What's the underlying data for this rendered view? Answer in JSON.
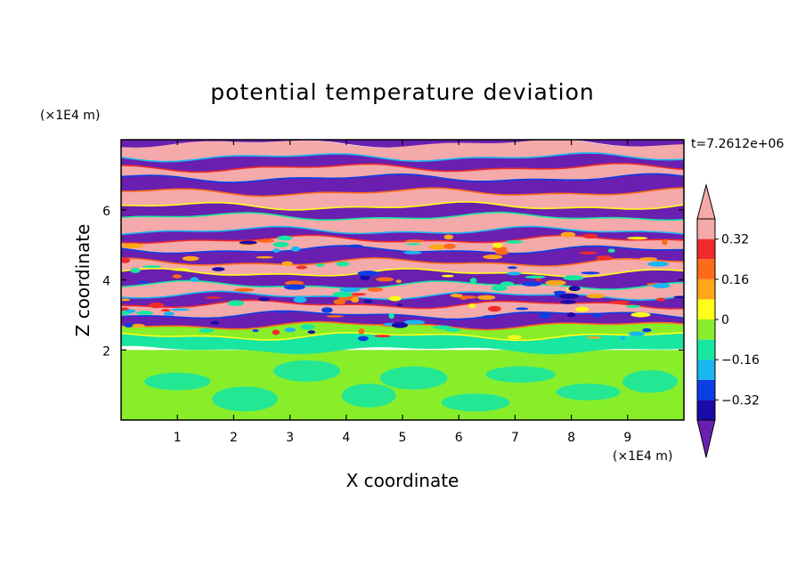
{
  "chart_data": {
    "type": "heatmap",
    "title": "potential temperature deviation",
    "xlabel": "X coordinate",
    "ylabel": "Z coordinate",
    "x_unit": "(×1E4 m)",
    "y_unit": "(×1E4 m)",
    "time_label": "t=7.2612e+06",
    "xlim": [
      0,
      10
    ],
    "ylim": [
      0,
      8
    ],
    "x_ticks": [
      "1",
      "2",
      "3",
      "4",
      "5",
      "6",
      "7",
      "8",
      "9"
    ],
    "y_ticks": [
      "2",
      "4",
      "6"
    ],
    "colorbar": {
      "levels": [
        -0.4,
        -0.32,
        -0.24,
        -0.16,
        -0.08,
        0,
        0.08,
        0.16,
        0.24,
        0.32,
        0.4
      ],
      "labels": [
        "0.32",
        "0.16",
        "0",
        "−0.16",
        "−0.32"
      ],
      "label_values": [
        0.32,
        0.16,
        0,
        -0.16,
        -0.32
      ],
      "colors": [
        "#6a1fb0",
        "#1a0aa8",
        "#0a3fe6",
        "#19b6f0",
        "#19e6a0",
        "#88ee2a",
        "#ffff19",
        "#ffa619",
        "#ff6a19",
        "#ee2c2c",
        "#f4aaaa"
      ],
      "extend": "both"
    },
    "bands": [
      {
        "z": [
          7.9,
          8.0
        ],
        "level": "low"
      },
      {
        "z": [
          7.5,
          7.9
        ],
        "level": "high"
      },
      {
        "z": [
          7.2,
          7.5
        ],
        "level": "low"
      },
      {
        "z": [
          6.9,
          7.2
        ],
        "level": "high"
      },
      {
        "z": [
          6.5,
          6.9
        ],
        "level": "low"
      },
      {
        "z": [
          6.1,
          6.5
        ],
        "level": "high"
      },
      {
        "z": [
          5.8,
          6.1
        ],
        "level": "low"
      },
      {
        "z": [
          5.4,
          5.8
        ],
        "level": "high"
      },
      {
        "z": [
          5.15,
          5.4
        ],
        "level": "low"
      },
      {
        "z": [
          4.85,
          5.15
        ],
        "level": "high"
      },
      {
        "z": [
          4.5,
          4.85
        ],
        "level": "low"
      },
      {
        "z": [
          4.2,
          4.5
        ],
        "level": "high"
      },
      {
        "z": [
          3.85,
          4.2
        ],
        "level": "low"
      },
      {
        "z": [
          3.55,
          3.85
        ],
        "level": "high"
      },
      {
        "z": [
          3.3,
          3.55
        ],
        "level": "low"
      },
      {
        "z": [
          3.0,
          3.3
        ],
        "level": "high"
      },
      {
        "z": [
          2.7,
          3.0
        ],
        "level": "low"
      },
      {
        "z": [
          2.4,
          2.7
        ],
        "level": "mixed"
      },
      {
        "z": [
          2.0,
          2.4
        ],
        "level": "near-zero"
      },
      {
        "z": [
          0.0,
          2.0
        ],
        "level": "slightly-positive"
      }
    ]
  }
}
